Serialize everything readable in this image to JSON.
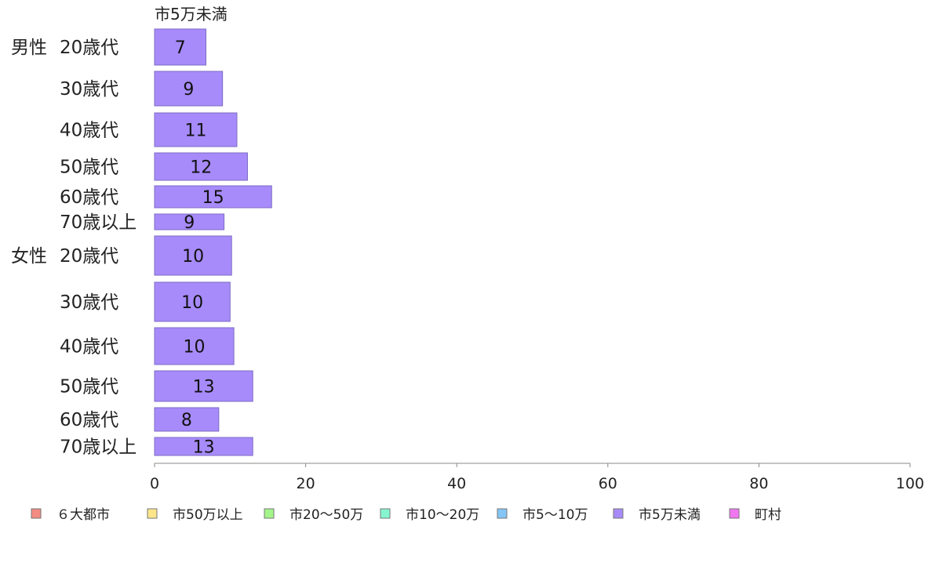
{
  "chart_data": {
    "type": "bar",
    "orientation": "horizontal",
    "title": "市5万未満",
    "groups": [
      "男性",
      "女性"
    ],
    "categories": [
      {
        "group": "男性",
        "label": "20歳代"
      },
      {
        "group": "",
        "label": "30歳代"
      },
      {
        "group": "",
        "label": "40歳代"
      },
      {
        "group": "",
        "label": "50歳代"
      },
      {
        "group": "",
        "label": "60歳代"
      },
      {
        "group": "",
        "label": "70歳以上"
      },
      {
        "group": "女性",
        "label": "20歳代"
      },
      {
        "group": "",
        "label": "30歳代"
      },
      {
        "group": "",
        "label": "40歳代"
      },
      {
        "group": "",
        "label": "50歳代"
      },
      {
        "group": "",
        "label": "60歳代"
      },
      {
        "group": "",
        "label": "70歳以上"
      }
    ],
    "series": [
      {
        "name": "市5万未満",
        "color": "#a78bfa",
        "values": [
          6.8,
          9.0,
          10.9,
          12.3,
          15.5,
          9.2,
          10.2,
          10.0,
          10.5,
          13.0,
          8.5,
          13.0
        ],
        "labels": [
          "7",
          "9",
          "11",
          "12",
          "15",
          "9",
          "10",
          "10",
          "10",
          "13",
          "8",
          "13"
        ]
      }
    ],
    "xlim": [
      0,
      100
    ],
    "xticks": [
      "0",
      "20",
      "40",
      "60",
      "80",
      "100"
    ],
    "grid": false,
    "legend_position": "bottom",
    "legend": [
      {
        "label": "６大都市",
        "color": "#f28b82"
      },
      {
        "label": "市50万以上",
        "color": "#fde68a"
      },
      {
        "label": "市20〜50万",
        "color": "#a3f58a"
      },
      {
        "label": "市10〜20万",
        "color": "#86f5cf"
      },
      {
        "label": "市5〜10万",
        "color": "#86c5f5"
      },
      {
        "label": "市5万未満",
        "color": "#a78bfa"
      },
      {
        "label": "町村",
        "color": "#f077f0"
      }
    ]
  }
}
